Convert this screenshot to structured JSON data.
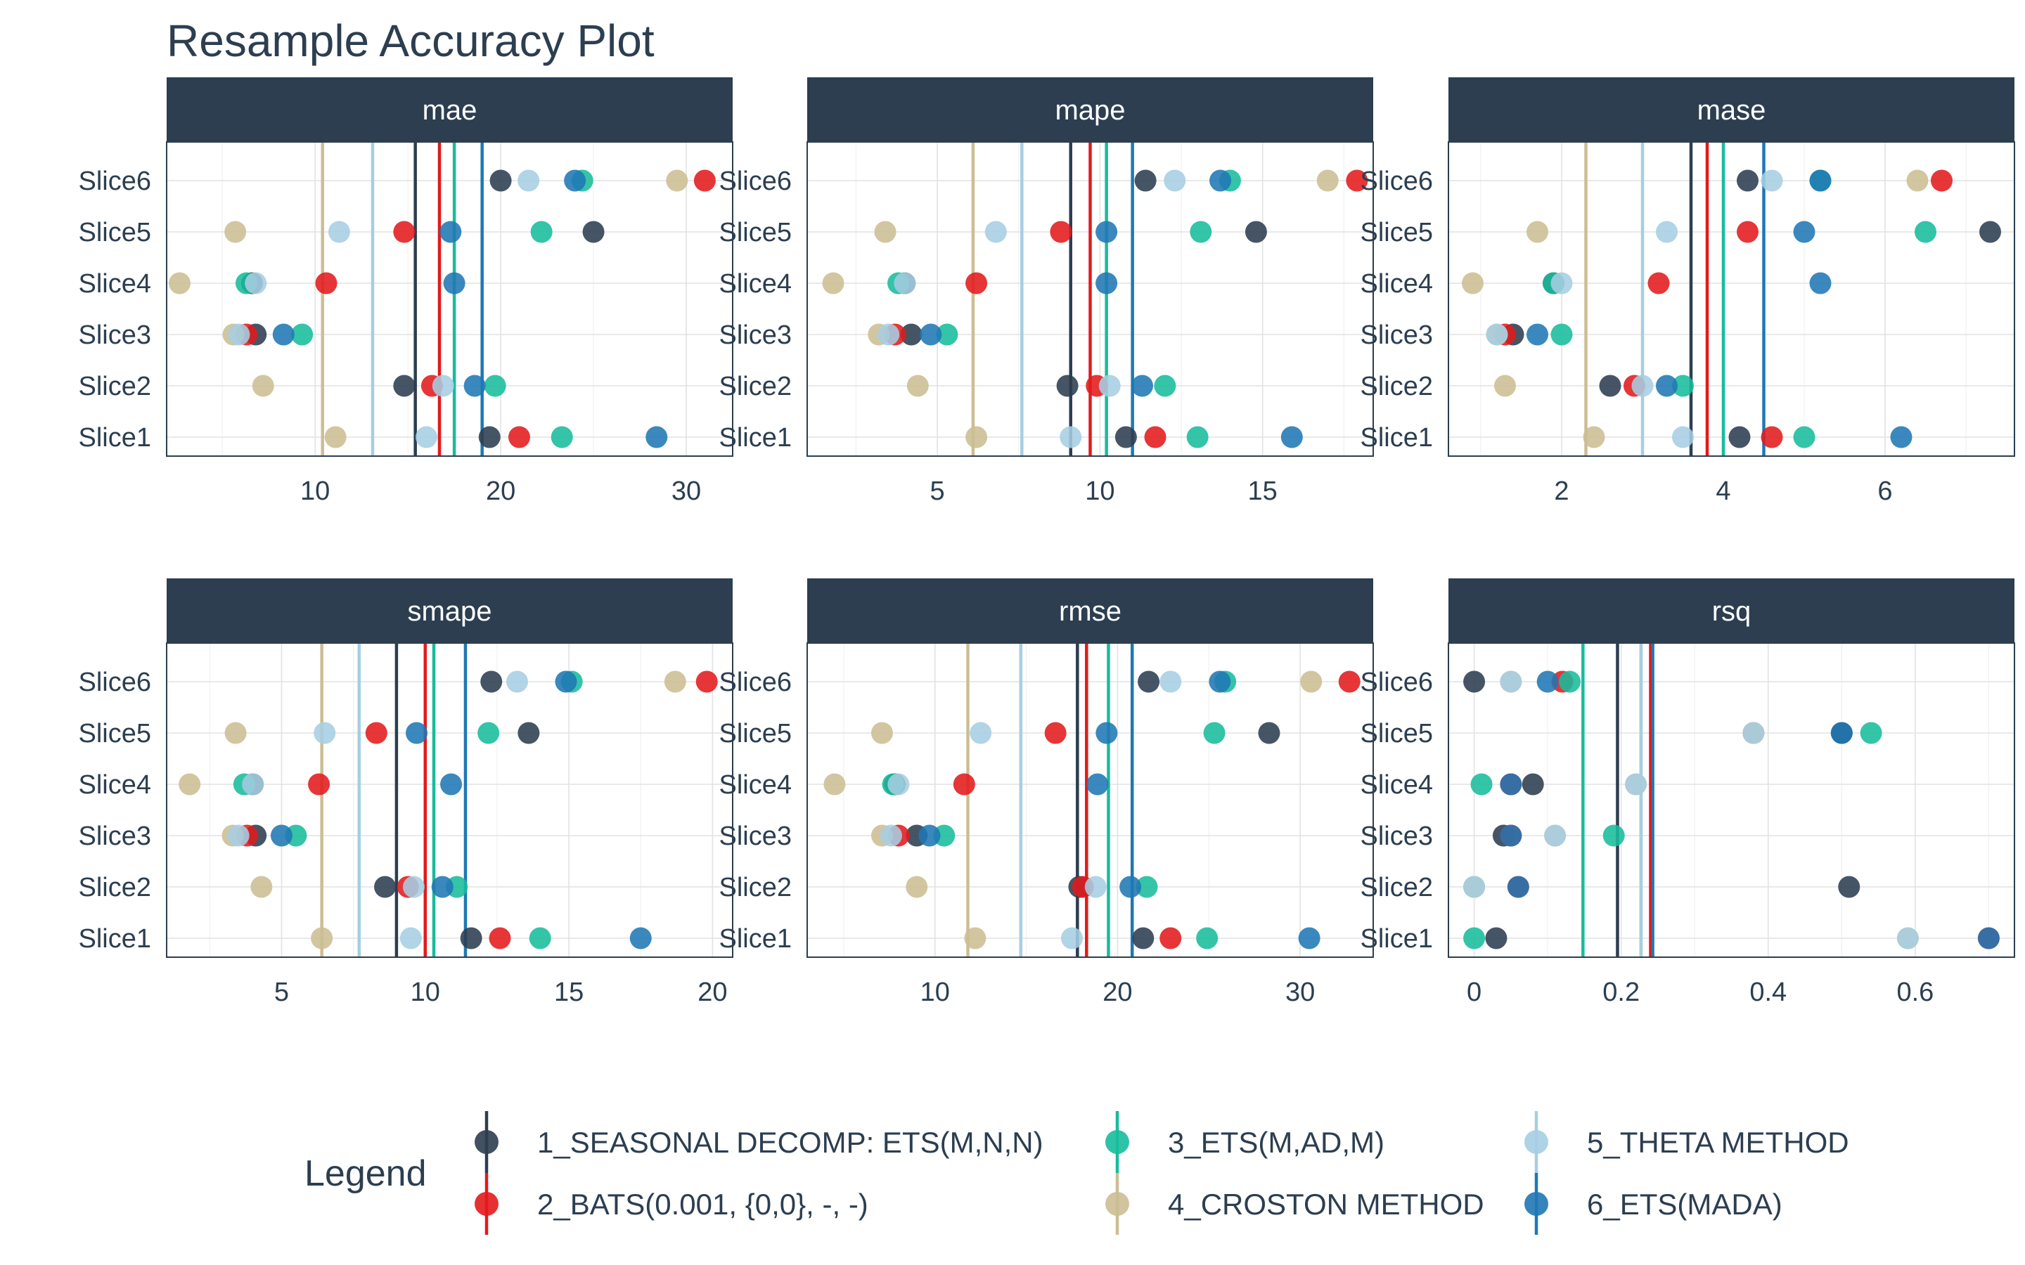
{
  "page": {
    "title": "Resample Accuracy Plot"
  },
  "legend": {
    "title": "Legend",
    "items": [
      {
        "label": "1_SEASONAL DECOMP: ETS(M,N,N)",
        "color": "#2c3e50"
      },
      {
        "label": "2_BATS(0.001, {0,0}, -, -)",
        "color": "#e31a1c"
      },
      {
        "label": "3_ETS(M,AD,M)",
        "color": "#18bc9c"
      },
      {
        "label": "4_CROSTON METHOD",
        "color": "#ccbe93"
      },
      {
        "label": "5_THETA METHOD",
        "color": "#a6cee3"
      },
      {
        "label": "6_ETS(MADA)",
        "color": "#1f78b4"
      }
    ]
  },
  "chart_data": [
    {
      "type": "scatter",
      "facet": "mae",
      "categories": [
        "Slice1",
        "Slice2",
        "Slice3",
        "Slice4",
        "Slice5",
        "Slice6"
      ],
      "xlim": [
        2,
        32.5
      ],
      "xticks": [
        10,
        20,
        30
      ],
      "series": [
        {
          "name": "1_SEASONAL DECOMP: ETS(M,N,N)",
          "color": "#2c3e50",
          "values": [
            19.4,
            14.8,
            6.8,
            6.6,
            25.0,
            20.0
          ],
          "mean": 15.4
        },
        {
          "name": "2_BATS(0.001, {0,0}, -, -)",
          "color": "#e31a1c",
          "values": [
            21.0,
            16.3,
            6.3,
            10.6,
            14.8,
            31.0
          ],
          "mean": 16.7
        },
        {
          "name": "3_ETS(M,AD,M)",
          "color": "#18bc9c",
          "values": [
            23.3,
            19.7,
            9.3,
            6.3,
            22.2,
            24.4
          ],
          "mean": 17.5
        },
        {
          "name": "4_CROSTON METHOD",
          "color": "#ccbe93",
          "values": [
            11.1,
            7.2,
            5.6,
            2.7,
            5.7,
            29.5
          ],
          "mean": 10.4
        },
        {
          "name": "5_THETA METHOD",
          "color": "#a6cee3",
          "values": [
            16.0,
            16.9,
            5.9,
            6.8,
            11.3,
            21.5
          ],
          "mean": 13.1
        },
        {
          "name": "6_ETS(MADA)",
          "color": "#1f78b4",
          "values": [
            28.4,
            18.6,
            8.3,
            17.5,
            17.3,
            24.0
          ],
          "mean": 19.0
        }
      ]
    },
    {
      "type": "scatter",
      "facet": "mape",
      "categories": [
        "Slice1",
        "Slice2",
        "Slice3",
        "Slice4",
        "Slice5",
        "Slice6"
      ],
      "xlim": [
        1.0,
        18.4
      ],
      "xticks": [
        5,
        10,
        15
      ],
      "series": [
        {
          "name": "1_SEASONAL DECOMP: ETS(M,N,N)",
          "color": "#2c3e50",
          "values": [
            10.8,
            9.0,
            4.2,
            4.0,
            14.8,
            11.4
          ],
          "mean": 9.1
        },
        {
          "name": "2_BATS(0.001, {0,0}, -, -)",
          "color": "#e31a1c",
          "values": [
            11.7,
            9.9,
            3.7,
            6.2,
            8.8,
            17.9
          ],
          "mean": 9.7
        },
        {
          "name": "3_ETS(M,AD,M)",
          "color": "#18bc9c",
          "values": [
            13.0,
            12.0,
            5.3,
            3.8,
            13.1,
            14.0
          ],
          "mean": 10.2
        },
        {
          "name": "4_CROSTON METHOD",
          "color": "#ccbe93",
          "values": [
            6.2,
            4.4,
            3.2,
            1.8,
            3.4,
            17.0
          ],
          "mean": 6.1
        },
        {
          "name": "5_THETA METHOD",
          "color": "#a6cee3",
          "values": [
            9.1,
            10.3,
            3.5,
            4.0,
            6.8,
            12.3
          ],
          "mean": 7.6
        },
        {
          "name": "6_ETS(MADA)",
          "color": "#1f78b4",
          "values": [
            15.9,
            11.3,
            4.8,
            10.2,
            10.2,
            13.7
          ],
          "mean": 11.0
        }
      ]
    },
    {
      "type": "scatter",
      "facet": "mase",
      "categories": [
        "Slice1",
        "Slice2",
        "Slice3",
        "Slice4",
        "Slice5",
        "Slice6"
      ],
      "xlim": [
        0.6,
        7.6
      ],
      "xticks": [
        2,
        4,
        6
      ],
      "series": [
        {
          "name": "1_SEASONAL DECOMP: ETS(M,N,N)",
          "color": "#2c3e50",
          "values": [
            4.2,
            2.6,
            1.4,
            1.9,
            7.3,
            4.3
          ],
          "mean": 3.6
        },
        {
          "name": "2_BATS(0.001, {0,0}, -, -)",
          "color": "#e31a1c",
          "values": [
            4.6,
            2.9,
            1.3,
            3.2,
            4.3,
            6.7
          ],
          "mean": 3.8
        },
        {
          "name": "3_ETS(M,AD,M)",
          "color": "#18bc9c",
          "values": [
            5.0,
            3.5,
            2.0,
            1.9,
            6.5,
            5.2
          ],
          "mean": 4.0
        },
        {
          "name": "4_CROSTON METHOD",
          "color": "#ccbe93",
          "values": [
            2.4,
            1.3,
            1.2,
            0.9,
            1.7,
            6.4
          ],
          "mean": 2.3
        },
        {
          "name": "5_THETA METHOD",
          "color": "#a6cee3",
          "values": [
            3.5,
            3.0,
            1.2,
            2.0,
            3.3,
            4.6
          ],
          "mean": 3.0
        },
        {
          "name": "6_ETS(MADA)",
          "color": "#1f78b4",
          "values": [
            6.2,
            3.3,
            1.7,
            5.2,
            5.0,
            5.2
          ],
          "mean": 4.5
        }
      ]
    },
    {
      "type": "scatter",
      "facet": "smape",
      "categories": [
        "Slice1",
        "Slice2",
        "Slice3",
        "Slice4",
        "Slice5",
        "Slice6"
      ],
      "xlim": [
        1.0,
        20.7
      ],
      "xticks": [
        5,
        10,
        15,
        20
      ],
      "series": [
        {
          "name": "1_SEASONAL DECOMP: ETS(M,N,N)",
          "color": "#2c3e50",
          "values": [
            11.6,
            8.6,
            4.1,
            4.0,
            13.6,
            12.3
          ],
          "mean": 9.0
        },
        {
          "name": "2_BATS(0.001, {0,0}, -, -)",
          "color": "#e31a1c",
          "values": [
            12.6,
            9.4,
            3.8,
            6.3,
            8.3,
            19.8
          ],
          "mean": 10.0
        },
        {
          "name": "3_ETS(M,AD,M)",
          "color": "#18bc9c",
          "values": [
            14.0,
            11.1,
            5.5,
            3.7,
            12.2,
            15.1
          ],
          "mean": 10.3
        },
        {
          "name": "4_CROSTON METHOD",
          "color": "#ccbe93",
          "values": [
            6.4,
            4.3,
            3.3,
            1.8,
            3.4,
            18.7
          ],
          "mean": 6.4
        },
        {
          "name": "5_THETA METHOD",
          "color": "#a6cee3",
          "values": [
            9.5,
            9.6,
            3.5,
            4.0,
            6.5,
            13.2
          ],
          "mean": 7.7
        },
        {
          "name": "6_ETS(MADA)",
          "color": "#1f78b4",
          "values": [
            17.5,
            10.6,
            5.0,
            10.9,
            9.7,
            14.9
          ],
          "mean": 11.4
        }
      ]
    },
    {
      "type": "scatter",
      "facet": "rmse",
      "categories": [
        "Slice1",
        "Slice2",
        "Slice3",
        "Slice4",
        "Slice5",
        "Slice6"
      ],
      "xlim": [
        3.0,
        34.0
      ],
      "xticks": [
        10,
        20,
        30
      ],
      "series": [
        {
          "name": "1_SEASONAL DECOMP: ETS(M,N,N)",
          "color": "#2c3e50",
          "values": [
            21.4,
            17.9,
            9.0,
            7.8,
            28.3,
            21.7
          ],
          "mean": 17.8
        },
        {
          "name": "2_BATS(0.001, {0,0}, -, -)",
          "color": "#e31a1c",
          "values": [
            22.9,
            18.1,
            8.0,
            11.6,
            16.6,
            32.7
          ],
          "mean": 18.3
        },
        {
          "name": "3_ETS(M,AD,M)",
          "color": "#18bc9c",
          "values": [
            24.9,
            21.6,
            10.5,
            7.7,
            25.3,
            25.9
          ],
          "mean": 19.5
        },
        {
          "name": "4_CROSTON METHOD",
          "color": "#ccbe93",
          "values": [
            12.2,
            9.0,
            7.1,
            4.5,
            7.1,
            30.6
          ],
          "mean": 11.8
        },
        {
          "name": "5_THETA METHOD",
          "color": "#a6cee3",
          "values": [
            17.5,
            18.8,
            7.6,
            8.0,
            12.5,
            22.9
          ],
          "mean": 14.7
        },
        {
          "name": "6_ETS(MADA)",
          "color": "#1f78b4",
          "values": [
            30.5,
            20.7,
            9.7,
            18.9,
            19.4,
            25.6
          ],
          "mean": 20.8
        }
      ]
    },
    {
      "type": "scatter",
      "facet": "rsq",
      "categories": [
        "Slice1",
        "Slice2",
        "Slice3",
        "Slice4",
        "Slice5",
        "Slice6"
      ],
      "xlim": [
        -0.035,
        0.735
      ],
      "xticks": [
        0.0,
        0.2,
        0.4,
        0.6
      ],
      "series": [
        {
          "name": "1_SEASONAL DECOMP: ETS(M,N,N)",
          "color": "#2c3e50",
          "values": [
            0.03,
            0.51,
            0.04,
            0.08,
            0.5,
            0.0
          ],
          "mean": 0.195
        },
        {
          "name": "2_BATS(0.001, {0,0}, -, -)",
          "color": "#e31a1c",
          "values": [
            0.7,
            0.06,
            0.05,
            0.05,
            0.38,
            0.12
          ],
          "mean": 0.24
        },
        {
          "name": "3_ETS(M,AD,M)",
          "color": "#18bc9c",
          "values": [
            0.0,
            0.0,
            0.19,
            0.01,
            0.54,
            0.13
          ],
          "mean": 0.148
        },
        {
          "name": "4_CROSTON METHOD",
          "color": "#ccbe93",
          "values": [
            0.59,
            0.0,
            0.11,
            0.22,
            0.38,
            0.05
          ],
          "mean": 0.227
        },
        {
          "name": "5_THETA METHOD",
          "color": "#a6cee3",
          "values": [
            0.59,
            0.0,
            0.11,
            0.22,
            0.38,
            0.05
          ],
          "mean": 0.227
        },
        {
          "name": "6_ETS(MADA)",
          "color": "#1f78b4",
          "values": [
            0.7,
            0.06,
            0.05,
            0.05,
            0.5,
            0.1
          ],
          "mean": 0.243
        }
      ]
    }
  ]
}
